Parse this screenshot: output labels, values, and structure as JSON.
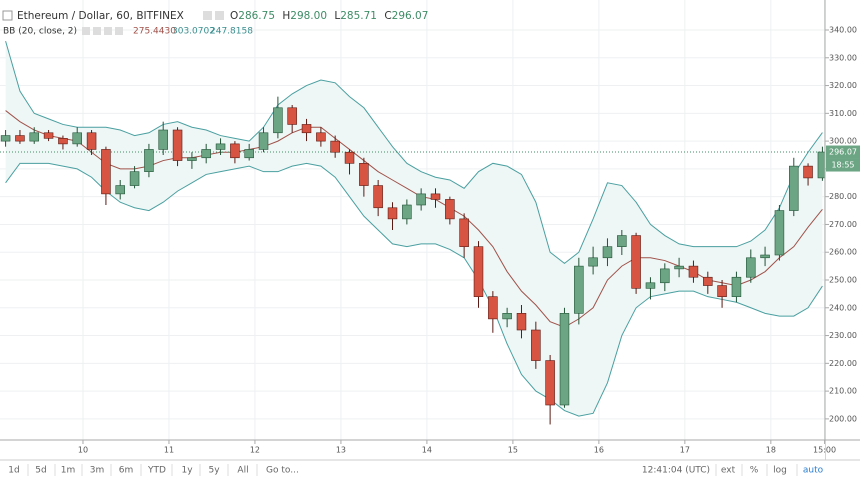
{
  "chart_data": {
    "type": "candlestick",
    "title": "Ethereum / Dollar, 60, BITFINEX",
    "ohlc_legend": [
      {
        "label": "O",
        "value": "286.75"
      },
      {
        "label": "H",
        "value": "298.00"
      },
      {
        "label": "L",
        "value": "285.71"
      },
      {
        "label": "C",
        "value": "296.07"
      }
    ],
    "indicator": {
      "name": "BB (20, close, 2)",
      "values": [
        "275.4430",
        "303.0702",
        "247.8158"
      ]
    },
    "x": [
      9.1,
      9.267,
      9.433,
      9.6,
      9.767,
      9.933,
      10.1,
      10.267,
      10.433,
      10.6,
      10.767,
      10.933,
      11.1,
      11.267,
      11.433,
      11.6,
      11.767,
      11.933,
      12.1,
      12.267,
      12.433,
      12.6,
      12.767,
      12.933,
      13.1,
      13.267,
      13.433,
      13.6,
      13.767,
      13.933,
      14.1,
      14.267,
      14.433,
      14.6,
      14.767,
      14.933,
      15.1,
      15.267,
      15.433,
      15.6,
      15.767,
      15.933,
      16.1,
      16.267,
      16.433,
      16.6,
      16.767,
      16.933,
      17.1,
      17.267,
      17.433,
      17.6,
      17.767,
      17.933,
      18.1,
      18.267,
      18.433,
      18.6
    ],
    "open": [
      300,
      302,
      300,
      303,
      301,
      299,
      303,
      297,
      281,
      284,
      289,
      297,
      304,
      293,
      294,
      297,
      299,
      294,
      297,
      303,
      312,
      306,
      303,
      300,
      296,
      292,
      284,
      276,
      272,
      277,
      281,
      279,
      272,
      262,
      244,
      236,
      238,
      232,
      221,
      205,
      238,
      255,
      258,
      262,
      266,
      247,
      249,
      254,
      255,
      251,
      248,
      244,
      251,
      258,
      259,
      275,
      291,
      286.75
    ],
    "high": [
      304,
      304,
      305,
      304,
      302,
      305,
      304,
      298,
      286,
      291,
      299,
      307,
      305,
      296,
      299,
      301,
      300,
      299,
      305,
      316,
      313,
      308,
      305,
      302,
      297,
      294,
      286,
      278,
      279,
      283,
      283,
      280,
      274,
      264,
      246,
      240,
      241,
      235,
      223,
      240,
      258,
      262,
      265,
      268,
      267,
      251,
      256,
      258,
      257,
      253,
      250,
      253,
      261,
      262,
      277,
      294,
      292,
      298
    ],
    "low": [
      298,
      299,
      299,
      300,
      297,
      298,
      295,
      277,
      279,
      283,
      287,
      295,
      291,
      290,
      292,
      295,
      292,
      293,
      296,
      301,
      303,
      300,
      298,
      294,
      288,
      280,
      273,
      268,
      270,
      275,
      276,
      270,
      258,
      240,
      231,
      233,
      229,
      218,
      198,
      204,
      234,
      252,
      255,
      259,
      245,
      243,
      246,
      251,
      249,
      245,
      240,
      242,
      249,
      255,
      257,
      273,
      284,
      285.71
    ],
    "close": [
      302,
      300,
      303,
      301,
      299,
      303,
      297,
      281,
      284,
      289,
      297,
      304,
      293,
      294,
      297,
      299,
      294,
      297,
      303,
      312,
      306,
      303,
      300,
      296,
      292,
      284,
      276,
      272,
      277,
      281,
      279,
      272,
      262,
      244,
      236,
      238,
      232,
      221,
      205,
      238,
      255,
      258,
      262,
      266,
      247,
      249,
      254,
      255,
      251,
      248,
      244,
      251,
      258,
      259,
      275,
      291,
      286.75,
      296.07
    ],
    "up_color": "#6ba583",
    "down_color": "#d75442",
    "bands": {
      "middle": {
        "color": "#a0524a",
        "values": [
          311,
          307,
          304,
          302,
          301,
          300,
          296,
          292,
          290,
          290,
          291,
          293,
          294,
          294,
          295,
          296,
          296,
          297,
          298,
          300,
          303,
          305,
          305,
          301,
          297,
          293,
          289,
          286,
          283,
          280,
          279,
          276,
          273,
          268,
          262,
          253,
          246,
          241,
          235,
          233,
          236,
          240,
          250,
          255,
          258,
          258,
          257,
          255,
          253,
          250,
          249,
          248,
          250,
          253,
          258,
          262,
          269,
          275.44
        ]
      },
      "upper": {
        "color": "#4a9fa0",
        "values": [
          336,
          318,
          310,
          308,
          306,
          305,
          305,
          305,
          304,
          302,
          303,
          306,
          307,
          305,
          304,
          302,
          301,
          300,
          305,
          313,
          317,
          320,
          322,
          321,
          316,
          312,
          305,
          298,
          292,
          289,
          287,
          286,
          283,
          289,
          292,
          291,
          288,
          278,
          260,
          256,
          260,
          272,
          285,
          284,
          278,
          270,
          266,
          263,
          262,
          262,
          262,
          262,
          264,
          268,
          276,
          288,
          296,
          303.07
        ]
      },
      "lower": {
        "color": "#4a9fa0",
        "values": [
          285,
          292,
          292,
          292,
          291,
          290,
          287,
          282,
          278,
          276,
          275,
          278,
          282,
          285,
          288,
          289,
          290,
          291,
          289,
          289,
          291,
          292,
          291,
          287,
          280,
          273,
          268,
          263,
          262,
          263,
          263,
          261,
          258,
          250,
          240,
          227,
          216,
          210,
          207,
          203,
          201,
          202,
          213,
          230,
          240,
          244,
          245,
          246,
          246,
          244,
          243,
          242,
          240,
          238,
          237,
          237,
          240,
          247.82
        ]
      },
      "fill": "#eef7f6"
    },
    "last_price": 296.07,
    "countdown": "18:55",
    "xlim": [
      9.035,
      18.63
    ],
    "xticks": [
      {
        "value": 10,
        "label": "10"
      },
      {
        "value": 11,
        "label": "11"
      },
      {
        "value": 12,
        "label": "12"
      },
      {
        "value": 13,
        "label": "13"
      },
      {
        "value": 14,
        "label": "14"
      },
      {
        "value": 15,
        "label": "15"
      },
      {
        "value": 16,
        "label": "16"
      },
      {
        "value": 17,
        "label": "17"
      },
      {
        "value": 18,
        "label": "18"
      },
      {
        "value": 18.625,
        "label": "15:00"
      }
    ],
    "ylim": [
      192.4,
      350.8
    ],
    "yticks": [
      {
        "value": 200,
        "label": "200.00"
      },
      {
        "value": 210,
        "label": "210.00"
      },
      {
        "value": 220,
        "label": "220.00"
      },
      {
        "value": 230,
        "label": "230.00"
      },
      {
        "value": 240,
        "label": "240.00"
      },
      {
        "value": 250,
        "label": "250.00"
      },
      {
        "value": 260,
        "label": "260.00"
      },
      {
        "value": 270,
        "label": "270.00"
      },
      {
        "value": 280,
        "label": "280.00"
      },
      {
        "value": 290,
        "label": "290.00"
      },
      {
        "value": 300,
        "label": "300.00"
      },
      {
        "value": 310,
        "label": "310.00"
      },
      {
        "value": 320,
        "label": "320.00"
      },
      {
        "value": 330,
        "label": "330.00"
      },
      {
        "value": 340,
        "label": "340.00"
      }
    ],
    "grid": true
  },
  "toolbar": {
    "ranges": [
      "1d",
      "5d",
      "1m",
      "3m",
      "6m",
      "YTD",
      "1y",
      "5y",
      "All"
    ],
    "goto": "Go to...",
    "clock": "12:41:04 (UTC)",
    "options": [
      "ext",
      "%",
      "log",
      "auto"
    ]
  }
}
